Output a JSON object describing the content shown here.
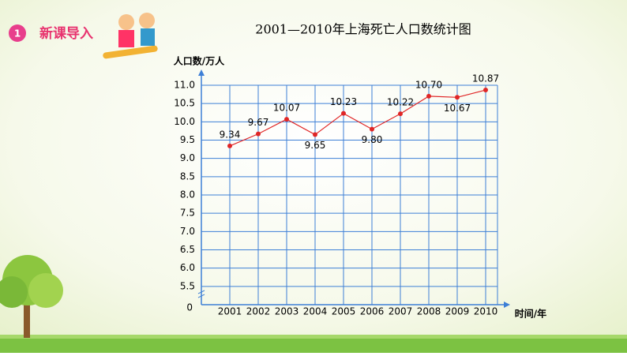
{
  "header": {
    "number": "1",
    "title": "新课导入"
  },
  "chart_data": {
    "type": "line",
    "title": "2001—2010年上海死亡人口数统计图",
    "y_label": "人口数/万人",
    "x_label": "时间/年",
    "y_origin_label": "0",
    "categories": [
      "2001",
      "2002",
      "2003",
      "2004",
      "2005",
      "2006",
      "2007",
      "2008",
      "2009",
      "2010"
    ],
    "values": [
      9.34,
      9.67,
      10.07,
      9.65,
      10.23,
      9.8,
      10.22,
      10.7,
      10.67,
      10.87
    ],
    "value_labels": [
      "9.34",
      "9.67",
      "10.07",
      "9.65",
      "10.23",
      "9.80",
      "10.22",
      "10.70",
      "10.67",
      "10.87"
    ],
    "color": "#e02626",
    "grid_color": "#3d7fd6",
    "ylim": [
      5,
      11
    ],
    "yticks": [
      5.5,
      {
        "value": 6,
        "label": "6.0"
      },
      6.5,
      {
        "value": 7,
        "label": "7.0"
      },
      7.5,
      {
        "value": 8,
        "label": "8.0"
      },
      8.5,
      {
        "value": 9,
        "label": "9.0"
      },
      9.5,
      {
        "value": 10,
        "label": "10.0"
      },
      10.5,
      {
        "value": 11,
        "label": "11.0"
      }
    ],
    "grid": true
  }
}
